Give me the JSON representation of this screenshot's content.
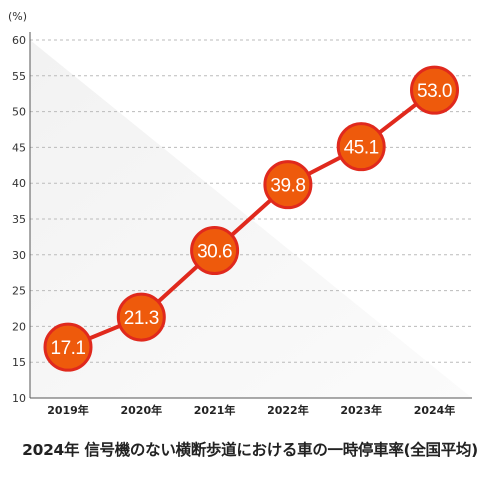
{
  "chart_data": {
    "type": "line",
    "title": "2024年 信号機のない横断歩道における車の一時停車率(全国平均)",
    "unit_label": "(%)",
    "categories": [
      "2019年",
      "2020年",
      "2021年",
      "2022年",
      "2023年",
      "2024年"
    ],
    "series": [
      {
        "values": [
          17.1,
          21.3,
          30.6,
          39.8,
          45.1,
          53.0
        ],
        "labels": [
          "17.1",
          "21.3",
          "30.6",
          "39.8",
          "45.1",
          "53.0"
        ]
      }
    ],
    "yticks": [
      "60",
      "55",
      "50",
      "45",
      "40",
      "35",
      "30",
      "25",
      "20",
      "15",
      "10"
    ],
    "ylim": [
      10,
      60
    ],
    "grid": true,
    "colors": {
      "line": "#e0291d",
      "marker_fill": "#ee5a0c",
      "marker_stroke": "#e0291d",
      "grid": "#bbbbbb",
      "label": "#ffffff"
    }
  }
}
